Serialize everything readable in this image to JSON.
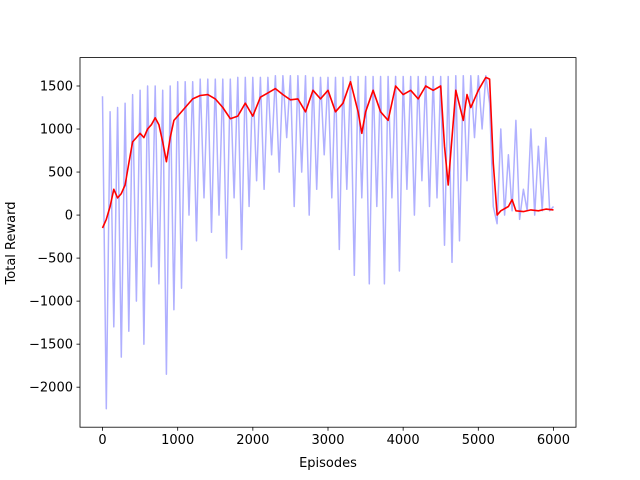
{
  "chart_data": {
    "type": "line",
    "xlabel": "Episodes",
    "ylabel": "Total Reward",
    "xlim": [
      -300,
      6300
    ],
    "ylim": [
      -2465,
      1830
    ],
    "xticks": [
      0,
      1000,
      2000,
      3000,
      4000,
      5000,
      6000
    ],
    "yticks": [
      {
        "value": -2000,
        "label": "−2000"
      },
      {
        "value": -1500,
        "label": "−1500"
      },
      {
        "value": -1000,
        "label": "−1000"
      },
      {
        "value": -500,
        "label": "−500"
      },
      0,
      500,
      1000,
      1500
    ],
    "series": [
      {
        "color": "#b0b0ff",
        "x": [
          0,
          50,
          100,
          150,
          200,
          250,
          300,
          350,
          400,
          450,
          500,
          550,
          600,
          650,
          700,
          750,
          800,
          850,
          900,
          950,
          1000,
          1050,
          1100,
          1150,
          1200,
          1250,
          1300,
          1350,
          1400,
          1450,
          1500,
          1550,
          1600,
          1650,
          1700,
          1750,
          1800,
          1850,
          1900,
          1950,
          2000,
          2050,
          2100,
          2150,
          2200,
          2250,
          2300,
          2350,
          2400,
          2450,
          2500,
          2550,
          2600,
          2650,
          2700,
          2750,
          2800,
          2850,
          2900,
          2950,
          3000,
          3050,
          3100,
          3150,
          3200,
          3250,
          3300,
          3350,
          3400,
          3450,
          3500,
          3550,
          3600,
          3650,
          3700,
          3750,
          3800,
          3850,
          3900,
          3950,
          4000,
          4050,
          4100,
          4150,
          4200,
          4250,
          4300,
          4350,
          4400,
          4450,
          4500,
          4550,
          4600,
          4650,
          4700,
          4750,
          4800,
          4850,
          4900,
          4950,
          5000,
          5050,
          5100,
          5150,
          5200,
          5250,
          5300,
          5350,
          5400,
          5450,
          5500,
          5550,
          5600,
          5650,
          5700,
          5750,
          5800,
          5850,
          5900,
          5950,
          6000
        ],
        "values": [
          1380,
          -2250,
          1200,
          -1300,
          1250,
          -1650,
          1300,
          -1350,
          1400,
          -1000,
          1450,
          -1500,
          1500,
          -600,
          1500,
          -800,
          1450,
          -1850,
          1500,
          -1100,
          1550,
          -850,
          1550,
          0,
          1550,
          -300,
          1580,
          200,
          1580,
          -200,
          1580,
          0,
          1580,
          -500,
          1580,
          200,
          1600,
          -400,
          1600,
          100,
          1600,
          400,
          1600,
          300,
          1600,
          700,
          1620,
          500,
          1620,
          900,
          1620,
          100,
          1620,
          500,
          1620,
          0,
          1600,
          300,
          1600,
          700,
          1600,
          200,
          1600,
          -400,
          1600,
          300,
          1610,
          -700,
          1610,
          200,
          1610,
          -800,
          1610,
          100,
          1610,
          -800,
          1610,
          200,
          1610,
          -650,
          1610,
          300,
          1610,
          0,
          1610,
          400,
          1610,
          100,
          1610,
          200,
          1610,
          -350,
          1610,
          -550,
          1620,
          -300,
          1620,
          400,
          1620,
          900,
          1620,
          1000,
          1620,
          1300,
          100,
          -100,
          1000,
          0,
          700,
          50,
          1100,
          -50,
          300,
          50,
          1000,
          0,
          800,
          50,
          900,
          50,
          100
        ]
      },
      {
        "color": "#ff0000",
        "x": [
          0,
          50,
          100,
          150,
          200,
          250,
          300,
          350,
          400,
          450,
          500,
          550,
          600,
          650,
          700,
          750,
          800,
          850,
          900,
          950,
          1000,
          1100,
          1200,
          1300,
          1400,
          1500,
          1600,
          1700,
          1800,
          1900,
          2000,
          2100,
          2200,
          2300,
          2400,
          2500,
          2600,
          2700,
          2800,
          2900,
          3000,
          3100,
          3200,
          3300,
          3400,
          3450,
          3500,
          3600,
          3700,
          3800,
          3900,
          4000,
          4100,
          4200,
          4300,
          4400,
          4500,
          4550,
          4600,
          4700,
          4800,
          4850,
          4900,
          5000,
          5100,
          5150,
          5200,
          5250,
          5300,
          5400,
          5450,
          5500,
          5600,
          5700,
          5800,
          5900,
          6000
        ],
        "values": [
          -150,
          -50,
          100,
          300,
          200,
          250,
          350,
          600,
          850,
          900,
          950,
          900,
          1000,
          1050,
          1130,
          1050,
          850,
          620,
          900,
          1100,
          1150,
          1250,
          1350,
          1390,
          1400,
          1350,
          1250,
          1120,
          1150,
          1300,
          1150,
          1370,
          1420,
          1470,
          1400,
          1340,
          1350,
          1200,
          1450,
          1350,
          1450,
          1200,
          1300,
          1550,
          1200,
          950,
          1200,
          1450,
          1200,
          1100,
          1500,
          1400,
          1450,
          1350,
          1500,
          1450,
          1500,
          800,
          350,
          1450,
          1100,
          1400,
          1250,
          1450,
          1600,
          1580,
          600,
          0,
          50,
          100,
          180,
          50,
          40,
          60,
          50,
          70,
          60
        ]
      }
    ]
  }
}
